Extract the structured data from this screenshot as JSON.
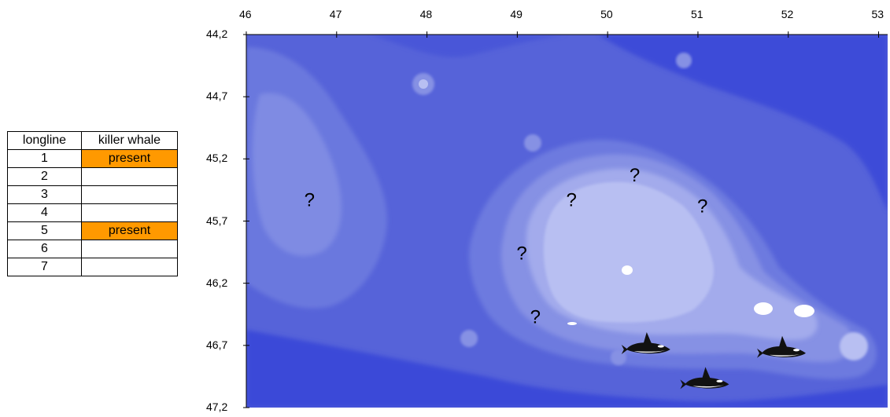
{
  "table": {
    "headers": [
      "longline",
      "killer whale"
    ],
    "rows": [
      {
        "longline": "1",
        "killer_whale": "present"
      },
      {
        "longline": "2",
        "killer_whale": ""
      },
      {
        "longline": "3",
        "killer_whale": ""
      },
      {
        "longline": "4",
        "killer_whale": ""
      },
      {
        "longline": "5",
        "killer_whale": "present"
      },
      {
        "longline": "6",
        "killer_whale": ""
      },
      {
        "longline": "7",
        "killer_whale": ""
      }
    ],
    "present_color": "#ff9900"
  },
  "map": {
    "x_ticks": [
      "46",
      "47",
      "48",
      "49",
      "50",
      "51",
      "52",
      "53"
    ],
    "y_ticks": [
      "44,2",
      "44,7",
      "45,2",
      "45,7",
      "46,2",
      "46,7",
      "47,2"
    ],
    "x_range": [
      46,
      53.1
    ],
    "y_range": [
      44.2,
      47.2
    ],
    "y_inverted": true,
    "colors": {
      "deep": "#3b49d8",
      "mid_deep": "#4c5ad9",
      "mid": "#6170db",
      "mid_shallow": "#7d8ae2",
      "shallow": "#9aa3ea",
      "plateau": "#b5bcf2",
      "island": "#ffffff"
    },
    "question_marks": [
      {
        "symbol": "?",
        "x": 46.7,
        "y": 45.58
      },
      {
        "symbol": "?",
        "x": 49.6,
        "y": 45.58
      },
      {
        "symbol": "?",
        "x": 50.3,
        "y": 45.38
      },
      {
        "symbol": "?",
        "x": 51.05,
        "y": 45.63
      },
      {
        "symbol": "?",
        "x": 49.05,
        "y": 46.01
      },
      {
        "symbol": "?",
        "x": 49.2,
        "y": 46.52
      }
    ],
    "killer_whales": [
      {
        "icon": "killer-whale-icon",
        "x": 50.45,
        "y": 46.72
      },
      {
        "icon": "killer-whale-icon",
        "x": 51.1,
        "y": 47.0
      },
      {
        "icon": "killer-whale-icon",
        "x": 51.95,
        "y": 46.75
      }
    ]
  }
}
